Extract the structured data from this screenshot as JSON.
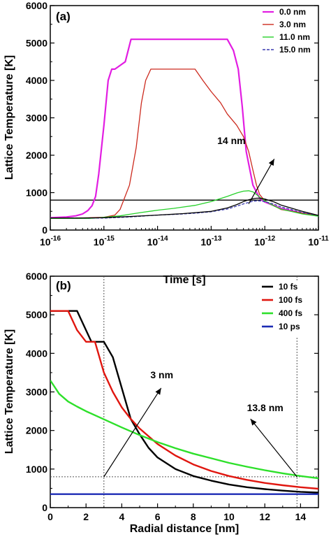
{
  "chart_data": [
    {
      "type": "line",
      "panel_label": "(a)",
      "xlabel": "Time [s]",
      "ylabel": "Lattice Temperature [K]",
      "x_scale": "log",
      "xlim": [
        1e-16,
        1e-11
      ],
      "ylim": [
        0,
        6000
      ],
      "x_tick_labels": [
        {
          "base": "10",
          "exp": "-16"
        },
        {
          "base": "10",
          "exp": "-15"
        },
        {
          "base": "10",
          "exp": "-14"
        },
        {
          "base": "10",
          "exp": "-13"
        },
        {
          "base": "10",
          "exp": "-12"
        },
        {
          "base": "10",
          "exp": "-11"
        }
      ],
      "y_tick_labels": [
        "0",
        "1000",
        "2000",
        "3000",
        "4000",
        "5000",
        "6000"
      ],
      "legend_position": "top-right",
      "colors": {
        "0.0 nm": "#e21de2",
        "3.0 nm": "#cc2a1e",
        "11.0 nm": "#27d12b",
        "15.0 nm": "#3a3ab0",
        "threshold": "#000000"
      },
      "series": [
        {
          "name": "0.0 nm",
          "x": [
            1e-16,
            2e-16,
            3e-16,
            4e-16,
            5e-16,
            6e-16,
            7e-16,
            8e-16,
            1e-15,
            1.2e-15,
            1.4e-15,
            1.6e-15,
            2e-15,
            2.5e-15,
            3.2e-15,
            4e-15,
            1e-14,
            1e-13,
            2e-13,
            2.6e-13,
            3.2e-13,
            3.8e-13,
            4.5e-13,
            6e-13,
            8e-13,
            1e-12,
            2e-12,
            5e-12,
            1e-11
          ],
          "y": [
            330,
            350,
            380,
            430,
            520,
            650,
            900,
            1500,
            2800,
            4000,
            4300,
            4300,
            4400,
            4500,
            5100,
            5100,
            5100,
            5100,
            5100,
            4800,
            4300,
            3300,
            2100,
            1200,
            850,
            750,
            580,
            450,
            380
          ]
        },
        {
          "name": "3.0 nm",
          "x": [
            1e-16,
            3e-16,
            1e-15,
            1.6e-15,
            2e-15,
            3e-15,
            4e-15,
            5e-15,
            6e-15,
            7.5e-15,
            1e-14,
            5e-14,
            7e-14,
            1e-13,
            1.5e-13,
            2e-13,
            3e-13,
            4e-13,
            5e-13,
            6e-13,
            7e-13,
            8e-13,
            1e-12,
            2e-12,
            1e-11
          ],
          "y": [
            320,
            320,
            340,
            400,
            550,
            1200,
            2200,
            3400,
            4000,
            4300,
            4300,
            4300,
            4000,
            3700,
            3400,
            3100,
            2800,
            2500,
            2100,
            1600,
            1200,
            950,
            780,
            550,
            380
          ]
        },
        {
          "name": "11.0 nm",
          "x": [
            1e-16,
            3e-16,
            5e-16,
            7e-16,
            1e-15,
            2e-15,
            3e-15,
            5e-15,
            8e-15,
            1e-14,
            2e-14,
            5e-14,
            1e-13,
            2e-13,
            3e-13,
            4e-13,
            5e-13,
            6e-13,
            7e-13,
            8e-13,
            1e-12,
            1.5e-12,
            2e-12,
            5e-12,
            1e-11
          ],
          "y": [
            310,
            310,
            310,
            320,
            340,
            380,
            420,
            470,
            510,
            530,
            580,
            660,
            760,
            900,
            990,
            1040,
            1050,
            1020,
            950,
            880,
            780,
            640,
            560,
            430,
            370
          ]
        },
        {
          "name": "15.0 nm",
          "dash": true,
          "x": [
            1e-16,
            1e-15,
            3e-15,
            1e-14,
            3e-14,
            5e-14,
            1e-13,
            2e-13,
            3e-13,
            4e-13,
            5e-13,
            6e-13,
            7e-13,
            8e-13,
            1e-12,
            1.5e-12,
            2e-12,
            5e-12,
            1e-11
          ],
          "y": [
            320,
            320,
            350,
            400,
            430,
            450,
            490,
            560,
            640,
            700,
            740,
            770,
            780,
            780,
            760,
            690,
            620,
            470,
            390
          ]
        },
        {
          "name": "14 nm",
          "x": [
            1e-16,
            3e-16,
            1e-15,
            3e-15,
            1e-14,
            3e-14,
            1e-13,
            2e-13,
            3e-13,
            4e-13,
            5e-13,
            6e-13,
            7e-13,
            8e-13,
            1e-12,
            1.5e-12,
            2e-12,
            5e-12,
            1e-11
          ],
          "y": [
            320,
            320,
            330,
            360,
            400,
            440,
            500,
            590,
            680,
            760,
            810,
            840,
            850,
            850,
            830,
            750,
            670,
            500,
            390
          ]
        }
      ],
      "hline": {
        "y": 800
      },
      "annotations": [
        {
          "text": "14 nm",
          "x": 1.3e-13,
          "y": 2300,
          "arrow_from": [
            5e-13,
            700
          ],
          "arrow_to": [
            1.5e-12,
            1900
          ]
        }
      ]
    },
    {
      "type": "line",
      "panel_label": "(b)",
      "xlabel": "Radial distance [nm]",
      "ylabel": "Lattice Temperature [K]",
      "xlim": [
        0,
        15
      ],
      "ylim": [
        0,
        6000
      ],
      "x_ticks": [
        0,
        2,
        4,
        6,
        8,
        10,
        12,
        14
      ],
      "y_ticks": [
        0,
        1000,
        2000,
        3000,
        4000,
        5000,
        6000
      ],
      "legend_position": "top-right",
      "colors": {
        "10 fs": "#000000",
        "100 fs": "#e0160f",
        "400 fs": "#2de02a",
        "10 ps": "#1c2bb4"
      },
      "series": [
        {
          "name": "10 fs",
          "x": [
            0,
            1.5,
            2.3,
            3.0,
            3.5,
            4.0,
            4.5,
            5.0,
            5.5,
            6,
            7,
            8,
            9,
            10,
            11,
            12,
            13,
            14,
            15
          ],
          "y": [
            5100,
            5100,
            4300,
            4300,
            3900,
            3100,
            2300,
            1900,
            1550,
            1300,
            1000,
            820,
            700,
            600,
            530,
            480,
            440,
            410,
            390
          ]
        },
        {
          "name": "100 fs",
          "x": [
            0,
            1.0,
            1.5,
            2.0,
            2.5,
            3.0,
            3.5,
            4.0,
            4.5,
            5.0,
            6,
            7,
            8,
            9,
            10,
            11,
            12,
            13,
            14,
            15
          ],
          "y": [
            5100,
            5100,
            4600,
            4300,
            4300,
            3500,
            3000,
            2600,
            2300,
            2050,
            1650,
            1350,
            1120,
            950,
            820,
            720,
            640,
            580,
            530,
            490
          ]
        },
        {
          "name": "400 fs",
          "x": [
            0,
            0.5,
            1.0,
            1.5,
            2,
            3,
            4,
            5,
            6,
            7,
            8,
            9,
            10,
            11,
            12,
            13,
            14,
            15
          ],
          "y": [
            3300,
            2950,
            2750,
            2620,
            2500,
            2290,
            2080,
            1880,
            1700,
            1540,
            1400,
            1280,
            1160,
            1060,
            970,
            890,
            820,
            760
          ]
        },
        {
          "name": "10 ps",
          "x": [
            0,
            15
          ],
          "y": [
            350,
            350
          ]
        }
      ],
      "hline": {
        "y": 800
      },
      "vlines": [
        3.0,
        13.8
      ],
      "annotations": [
        {
          "text": "3 nm",
          "x": 5.6,
          "y": 3350,
          "arrow_from": [
            3.0,
            800
          ],
          "arrow_to": [
            6.2,
            3100
          ]
        },
        {
          "text": "13.8 nm",
          "x": 11.0,
          "y": 2500,
          "arrow_from": [
            13.8,
            800
          ],
          "arrow_to": [
            11.2,
            2300
          ]
        }
      ]
    }
  ]
}
